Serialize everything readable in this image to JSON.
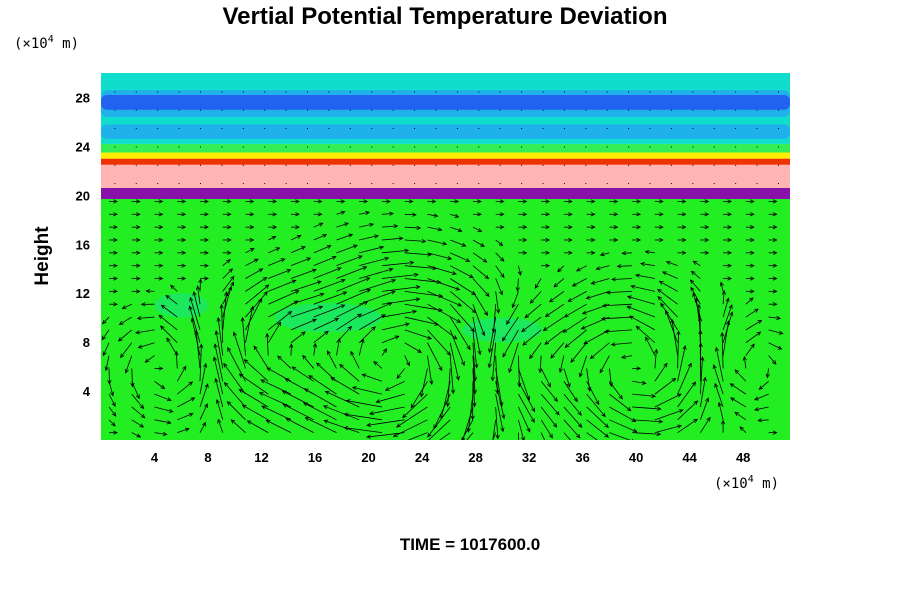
{
  "chart_data": {
    "type": "heatmap",
    "title": "Vertial Potential Temperature Deviation",
    "ylabel": "Height",
    "x_unit": {
      "prefix": "(×10",
      "exp": "4",
      "suffix": " m)"
    },
    "y_unit": {
      "prefix": "(×10",
      "exp": "4",
      "suffix": " m)"
    },
    "xlim": [
      0,
      51.5
    ],
    "ylim": [
      0,
      30
    ],
    "x_ticks": [
      4,
      8,
      12,
      16,
      20,
      24,
      28,
      32,
      36,
      40,
      44,
      48
    ],
    "y_ticks": [
      4,
      8,
      12,
      16,
      20,
      24,
      28
    ],
    "time_label": "TIME = 1017600.0",
    "grid": false,
    "colors": {
      "field_green": "#22ee22",
      "upper_cyan": "#11ddcc",
      "dark_blue": "#2255ee",
      "mid_blue": "#22aaee",
      "yellow": "#ffee00",
      "red": "#ee3300",
      "pink": "#ffb4b4",
      "purple": "#8811aa",
      "arrow": "#000000"
    },
    "layers": [
      {
        "name": "lower field",
        "y_from": 0,
        "y_to": 19.7,
        "color": "#22ee22"
      },
      {
        "name": "purple band",
        "y_from": 19.7,
        "y_to": 20.6,
        "color": "#8811aa"
      },
      {
        "name": "pink band",
        "y_from": 20.6,
        "y_to": 22.5,
        "color": "#ffb4b4"
      },
      {
        "name": "red line",
        "y_from": 22.5,
        "y_to": 23.0,
        "color": "#ee3300"
      },
      {
        "name": "yellow line",
        "y_from": 23.0,
        "y_to": 23.5,
        "color": "#ffee00"
      },
      {
        "name": "green strip",
        "y_from": 23.5,
        "y_to": 24.2,
        "color": "#33ee55"
      },
      {
        "name": "upper cyan",
        "y_from": 24.2,
        "y_to": 30,
        "color": "#11ddcc"
      }
    ],
    "upper_blue_bands": [
      {
        "y_from": 26.4,
        "y_to": 28.6,
        "color": "#22aaee"
      },
      {
        "y_from": 27.0,
        "y_to": 28.2,
        "color": "#2255ee"
      },
      {
        "y_from": 24.6,
        "y_to": 25.8,
        "color": "#22aaee"
      }
    ],
    "vortices": [
      {
        "cx": 5.5,
        "cy": 6,
        "r": 4.5,
        "dir": 1
      },
      {
        "cx": 22,
        "cy": 6.5,
        "r": 7.5,
        "dir": -1
      },
      {
        "cx": 12,
        "cy": 7,
        "r": 5,
        "dir": -1
      },
      {
        "cx": 40,
        "cy": 6,
        "r": 6,
        "dir": 1
      },
      {
        "cx": 31,
        "cy": 7,
        "r": 4,
        "dir": 1
      },
      {
        "cx": 48,
        "cy": 6,
        "r": 4,
        "dir": -1
      }
    ]
  }
}
